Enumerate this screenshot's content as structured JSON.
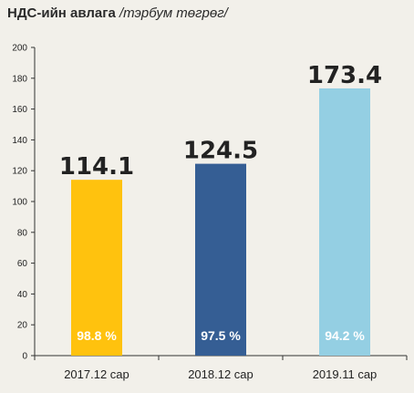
{
  "chart_data": {
    "type": "bar",
    "title": "НДС-ийн авлага",
    "subtitle": "/тэрбум төгрөг/",
    "categories": [
      "2017.12 сар",
      "2018.12 сар",
      "2019.11 сар"
    ],
    "values": [
      114.1,
      124.5,
      173.4
    ],
    "value_labels": [
      "114.1",
      "124.5",
      "173.4"
    ],
    "inner_labels": [
      "98.8 %",
      "97.5 %",
      "94.2 %"
    ],
    "colors": [
      "#ffc20e",
      "#355e94",
      "#94cfe3"
    ],
    "ylim": [
      0,
      200
    ],
    "yticks": [
      0,
      20,
      40,
      60,
      80,
      100,
      120,
      140,
      160,
      180,
      200
    ],
    "grid": false,
    "legend": "none"
  }
}
